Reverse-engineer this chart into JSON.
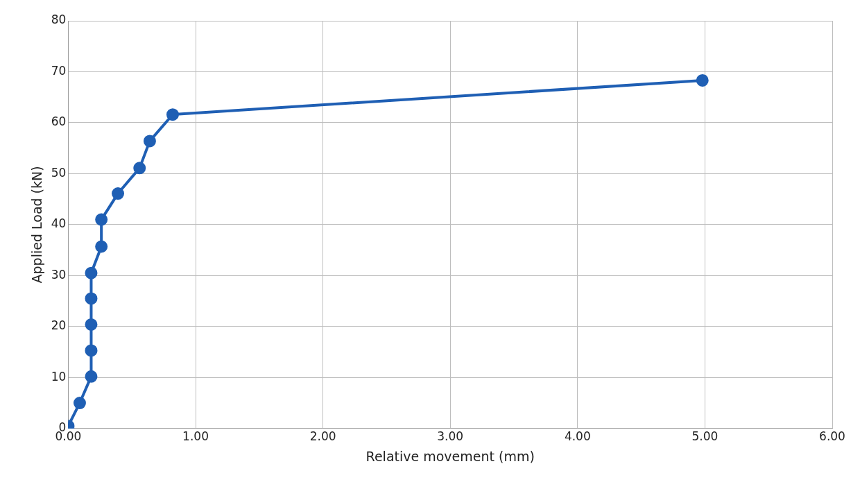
{
  "chart_data": {
    "type": "line",
    "xlabel": "Relative movement (mm)",
    "ylabel": "Applied Load (kN)",
    "x": [
      0,
      0,
      0.09,
      0.18,
      0.18,
      0.18,
      0.18,
      0.18,
      0.26,
      0.26,
      0.39,
      0.56,
      0.64,
      0.82,
      4.98
    ],
    "series": [
      {
        "color": "#1f5fb4",
        "values": [
          0,
          0.5,
          5.0,
          10.2,
          15.3,
          20.4,
          25.5,
          30.5,
          35.7,
          41.0,
          46.1,
          51.1,
          56.4,
          61.6,
          68.3
        ]
      }
    ],
    "xlim": [
      0,
      6
    ],
    "xticks": [
      {
        "value": 0,
        "label": "0.00"
      },
      {
        "value": 1,
        "label": "1.00"
      },
      {
        "value": 2,
        "label": "2.00"
      },
      {
        "value": 3,
        "label": "3.00"
      },
      {
        "value": 4,
        "label": "4.00"
      },
      {
        "value": 5,
        "label": "5.00"
      },
      {
        "value": 6,
        "label": "6.00"
      }
    ],
    "ylim": [
      0,
      80
    ],
    "yticks": [
      0,
      10,
      20,
      30,
      40,
      50,
      60,
      70,
      80
    ],
    "grid": true,
    "legend": false,
    "marker": "circle",
    "line_style": "solid"
  }
}
